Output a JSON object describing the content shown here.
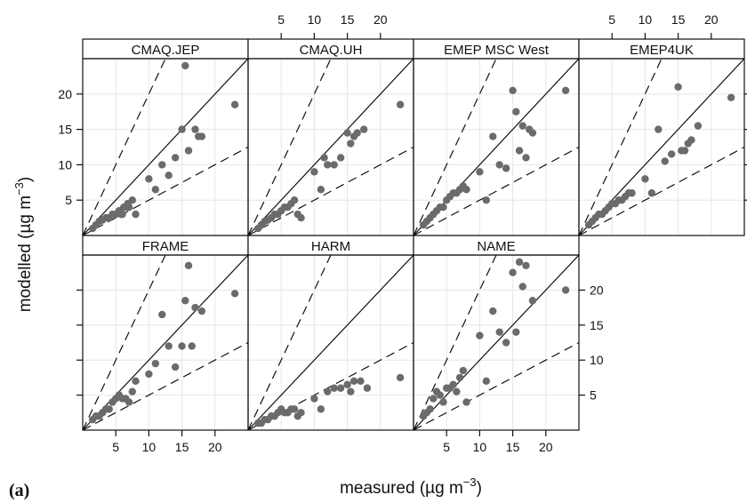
{
  "chart_data": {
    "type": "scatter",
    "layout": "lattice panels, 4 columns x 2 rows",
    "panel_label": "(a)",
    "xlabel": "measured (µg m",
    "xlabel_sup": "−3",
    "xlabel_close": ")",
    "ylabel": "modelled (µg m",
    "ylabel_sup": "−3",
    "ylabel_close": ")",
    "xlim": [
      0,
      25
    ],
    "ylim": [
      0,
      25
    ],
    "xticks": [
      5,
      10,
      15,
      20
    ],
    "yticks": [
      5,
      10,
      15,
      20
    ],
    "xtick_labels": [
      "5",
      "10",
      "15",
      "20"
    ],
    "ytick_labels": [
      "5",
      "10",
      "15",
      "20"
    ],
    "reference_lines": {
      "solid": "1:1",
      "dashed": [
        "2:1",
        "1:2"
      ]
    },
    "grid": true,
    "marker_color": "#6b6b6b",
    "panels": [
      {
        "name": "CMAQ.JEP",
        "x": [
          1.5,
          2.0,
          2.5,
          3.0,
          3.5,
          4.0,
          4.5,
          5.0,
          5.5,
          5.8,
          6.0,
          6.2,
          6.5,
          6.8,
          7.0,
          7.5,
          8.0,
          10.0,
          11.0,
          12.0,
          13.0,
          14.0,
          15.0,
          15.5,
          16.0,
          17.0,
          17.5,
          18.0,
          23.0
        ],
        "y": [
          1.0,
          1.5,
          2.0,
          2.2,
          2.5,
          2.5,
          3.0,
          3.0,
          3.5,
          3.0,
          3.0,
          4.0,
          4.0,
          4.5,
          4.0,
          5.0,
          3.0,
          8.0,
          6.5,
          10.0,
          8.5,
          11.0,
          15.0,
          24.0,
          12.0,
          15.0,
          14.0,
          14.0,
          18.5
        ]
      },
      {
        "name": "CMAQ.UH",
        "x": [
          1.5,
          2.0,
          2.5,
          3.0,
          3.5,
          4.0,
          4.5,
          5.0,
          5.5,
          6.0,
          6.5,
          7.0,
          7.5,
          8.0,
          10.0,
          11.0,
          11.5,
          12.0,
          13.0,
          14.0,
          15.0,
          15.5,
          16.0,
          16.5,
          17.5,
          23.0
        ],
        "y": [
          1.0,
          1.5,
          2.0,
          2.2,
          2.5,
          3.0,
          3.0,
          3.5,
          4.0,
          4.0,
          4.5,
          5.0,
          3.0,
          2.5,
          9.0,
          6.5,
          11.0,
          10.0,
          10.0,
          11.0,
          14.5,
          13.0,
          14.0,
          14.5,
          15.0,
          18.5
        ]
      },
      {
        "name": "EMEP MSC West",
        "x": [
          1.5,
          2.0,
          2.5,
          3.0,
          3.5,
          4.0,
          4.5,
          5.0,
          5.5,
          6.0,
          6.5,
          7.0,
          7.5,
          8.0,
          10.0,
          11.0,
          12.0,
          13.0,
          14.0,
          15.0,
          15.5,
          16.0,
          16.5,
          17.0,
          17.5,
          18.0,
          23.0
        ],
        "y": [
          1.5,
          2.0,
          2.5,
          3.0,
          3.5,
          4.0,
          4.0,
          5.0,
          5.5,
          6.0,
          6.0,
          6.5,
          7.0,
          6.5,
          9.0,
          5.0,
          14.0,
          10.0,
          9.5,
          20.5,
          17.5,
          12.0,
          15.5,
          11.0,
          15.0,
          14.5,
          20.5
        ]
      },
      {
        "name": "EMEP4UK",
        "x": [
          1.5,
          2.0,
          2.5,
          3.0,
          3.5,
          4.0,
          4.5,
          5.0,
          5.5,
          6.0,
          6.5,
          7.0,
          7.5,
          8.0,
          10.0,
          11.0,
          12.0,
          13.0,
          14.0,
          15.0,
          15.5,
          16.0,
          16.5,
          17.0,
          18.0,
          23.0
        ],
        "y": [
          1.5,
          2.0,
          2.5,
          3.0,
          3.0,
          3.5,
          4.0,
          4.5,
          4.5,
          5.0,
          5.0,
          5.5,
          6.0,
          6.0,
          8.0,
          6.0,
          15.0,
          10.5,
          11.5,
          21.0,
          12.0,
          12.0,
          13.0,
          13.5,
          15.5,
          19.5
        ]
      },
      {
        "name": "FRAME",
        "x": [
          1.5,
          2.0,
          2.5,
          3.0,
          3.5,
          4.0,
          4.5,
          5.0,
          5.5,
          6.0,
          6.5,
          7.0,
          7.5,
          8.0,
          10.0,
          11.0,
          12.0,
          13.0,
          14.0,
          15.0,
          15.5,
          16.0,
          16.5,
          17.0,
          18.0,
          23.0
        ],
        "y": [
          1.5,
          2.0,
          2.0,
          2.5,
          3.0,
          3.0,
          4.0,
          4.5,
          5.0,
          4.5,
          4.5,
          4.0,
          5.5,
          7.0,
          8.0,
          9.5,
          16.5,
          12.0,
          9.0,
          12.0,
          18.5,
          23.5,
          12.0,
          17.5,
          17.0,
          19.5
        ]
      },
      {
        "name": "HARM",
        "x": [
          1.5,
          2.0,
          2.5,
          3.0,
          3.5,
          4.0,
          4.5,
          5.0,
          5.5,
          6.0,
          6.5,
          7.0,
          7.5,
          8.0,
          10.0,
          11.0,
          12.0,
          13.0,
          14.0,
          15.0,
          15.5,
          16.0,
          17.0,
          18.0,
          23.0
        ],
        "y": [
          1.0,
          1.0,
          1.5,
          1.5,
          2.0,
          2.0,
          2.5,
          3.0,
          2.5,
          2.5,
          3.0,
          3.0,
          2.0,
          2.5,
          4.5,
          3.0,
          5.5,
          6.0,
          6.0,
          6.5,
          5.5,
          7.0,
          7.0,
          6.0,
          7.5
        ]
      },
      {
        "name": "NAME",
        "x": [
          1.5,
          2.0,
          2.5,
          3.0,
          3.5,
          4.0,
          4.5,
          5.0,
          5.5,
          6.0,
          6.5,
          7.0,
          7.5,
          8.0,
          10.0,
          11.0,
          12.0,
          13.0,
          14.0,
          15.0,
          15.5,
          16.0,
          16.5,
          17.0,
          18.0,
          23.0
        ],
        "y": [
          2.0,
          2.5,
          3.0,
          4.5,
          5.5,
          5.0,
          4.0,
          6.0,
          6.0,
          6.5,
          5.5,
          7.5,
          8.5,
          4.0,
          13.5,
          7.0,
          17.0,
          14.0,
          12.5,
          22.5,
          14.0,
          24.0,
          20.5,
          23.5,
          18.5,
          20.0
        ]
      }
    ]
  }
}
